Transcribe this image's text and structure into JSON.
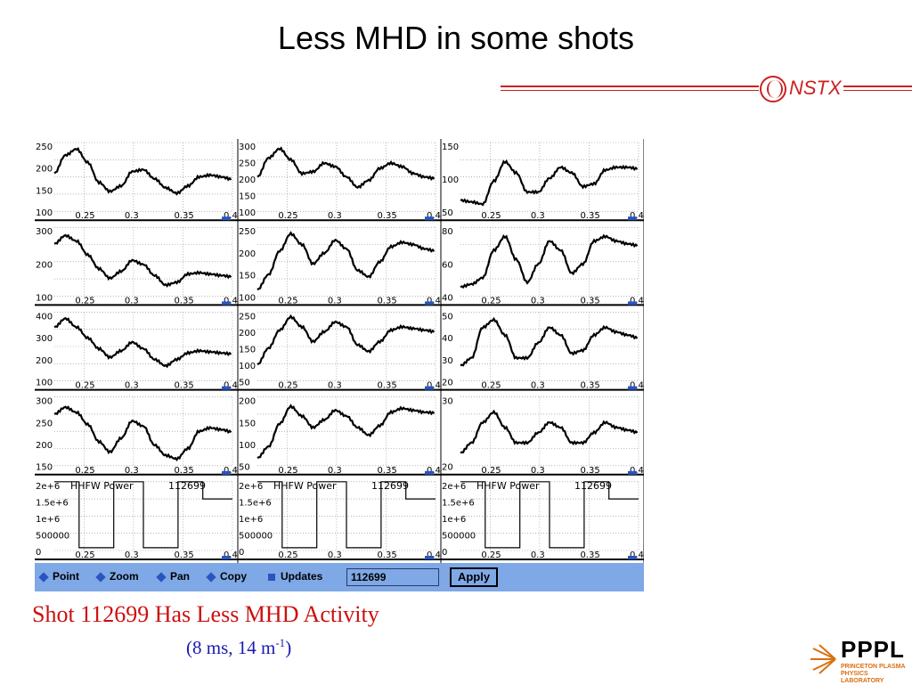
{
  "title": "Less MHD in some shots",
  "logo_nstx": "NSTX",
  "caption": "Shot 112699 Has Less MHD Activity",
  "subcaption": {
    "main": "(8 ms, 14 m",
    "sup": "-1",
    "close": ")"
  },
  "logo_pppl": {
    "main": "PPPL",
    "line1": "PRINCETON PLASMA",
    "line2": "PHYSICS LABORATORY"
  },
  "toolbar": {
    "point": "Point",
    "zoom": "Zoom",
    "pan": "Pan",
    "copy": "Copy",
    "updates": "Updates",
    "shot_value": "112699",
    "apply": "Apply"
  },
  "colors": {
    "title": "#000000",
    "caption": "#cc1010",
    "subcaption": "#1a1ab0",
    "toolbar": "#7fa8e6",
    "nstx": "#cc2020",
    "pppl_accent": "#d87010"
  },
  "chart_data": {
    "type": "line",
    "x_ticks": [
      "0.25",
      "0.3",
      "0.35",
      "0.4"
    ],
    "xlim": [
      0.22,
      0.4
    ],
    "grid": true,
    "panels": [
      {
        "row": 0,
        "col": 0,
        "y_ticks": [
          "250",
          "200",
          "150",
          "100"
        ],
        "ylim": [
          100,
          290
        ],
        "values": [
          205,
          255,
          272,
          235,
          180,
          155,
          170,
          210,
          215,
          190,
          165,
          150,
          170,
          195,
          200,
          195,
          188
        ]
      },
      {
        "row": 0,
        "col": 1,
        "y_ticks": [
          "300",
          "250",
          "200",
          "150",
          "100"
        ],
        "ylim": [
          100,
          300
        ],
        "values": [
          200,
          255,
          282,
          250,
          210,
          215,
          240,
          230,
          200,
          170,
          190,
          225,
          240,
          230,
          210,
          200,
          195
        ]
      },
      {
        "row": 0,
        "col": 2,
        "y_ticks": [
          "150",
          "100",
          "50"
        ],
        "ylim": [
          35,
          160
        ],
        "values": [
          55,
          52,
          48,
          90,
          125,
          105,
          70,
          70,
          95,
          115,
          105,
          80,
          85,
          110,
          115,
          115,
          112
        ]
      },
      {
        "row": 1,
        "col": 0,
        "y_ticks": [
          "300",
          "200",
          "100"
        ],
        "ylim": [
          100,
          350
        ],
        "values": [
          290,
          320,
          300,
          250,
          200,
          165,
          190,
          230,
          215,
          175,
          140,
          150,
          180,
          185,
          180,
          175,
          170
        ]
      },
      {
        "row": 1,
        "col": 1,
        "y_ticks": [
          "250",
          "200",
          "150",
          "100"
        ],
        "ylim": [
          100,
          260
        ],
        "values": [
          115,
          150,
          205,
          245,
          220,
          175,
          200,
          230,
          210,
          160,
          145,
          180,
          215,
          225,
          220,
          210,
          205
        ]
      },
      {
        "row": 1,
        "col": 2,
        "y_ticks": [
          "80",
          "60",
          "40"
        ],
        "ylim": [
          15,
          90
        ],
        "values": [
          25,
          28,
          35,
          65,
          80,
          55,
          30,
          50,
          75,
          65,
          40,
          50,
          75,
          80,
          75,
          72,
          70
        ]
      },
      {
        "row": 2,
        "col": 0,
        "y_ticks": [
          "400",
          "300",
          "200",
          "100"
        ],
        "ylim": [
          100,
          420
        ],
        "values": [
          350,
          390,
          350,
          300,
          250,
          210,
          240,
          280,
          250,
          200,
          170,
          200,
          230,
          240,
          235,
          230,
          225
        ]
      },
      {
        "row": 2,
        "col": 1,
        "y_ticks": [
          "250",
          "200",
          "150",
          "100",
          "50"
        ],
        "ylim": [
          50,
          260
        ],
        "values": [
          100,
          150,
          205,
          245,
          215,
          170,
          200,
          230,
          215,
          160,
          140,
          170,
          205,
          215,
          210,
          205,
          200
        ]
      },
      {
        "row": 2,
        "col": 2,
        "y_ticks": [
          "50",
          "40",
          "30",
          "20"
        ],
        "ylim": [
          10,
          55
        ],
        "values": [
          20,
          25,
          45,
          50,
          40,
          25,
          25,
          35,
          45,
          40,
          28,
          30,
          40,
          45,
          42,
          40,
          38
        ]
      },
      {
        "row": 3,
        "col": 0,
        "y_ticks": [
          "300",
          "250",
          "200",
          "150"
        ],
        "ylim": [
          130,
          330
        ],
        "values": [
          280,
          300,
          285,
          250,
          200,
          170,
          210,
          260,
          245,
          190,
          160,
          150,
          180,
          230,
          240,
          235,
          228
        ]
      },
      {
        "row": 3,
        "col": 1,
        "y_ticks": [
          "200",
          "150",
          "100",
          "50"
        ],
        "ylim": [
          40,
          220
        ],
        "values": [
          60,
          90,
          150,
          195,
          170,
          140,
          160,
          185,
          170,
          140,
          120,
          145,
          180,
          190,
          185,
          180,
          178
        ]
      },
      {
        "row": 3,
        "col": 2,
        "y_ticks": [
          "30",
          "20"
        ],
        "ylim": [
          5,
          32
        ],
        "values": [
          10,
          14,
          22,
          26,
          20,
          14,
          14,
          18,
          22,
          20,
          14,
          14,
          18,
          22,
          20,
          19,
          18
        ]
      }
    ],
    "power_panels": {
      "label": "HHFW Power",
      "shot": "112699",
      "y_ticks": [
        "2e+6",
        "1.5e+6",
        "1e+6",
        "500000",
        "0"
      ],
      "ylim": [
        0,
        2000000
      ],
      "segments": [
        [
          0.22,
          2000000
        ],
        [
          0.245,
          2000000
        ],
        [
          0.245,
          80000
        ],
        [
          0.28,
          80000
        ],
        [
          0.28,
          2000000
        ],
        [
          0.31,
          2000000
        ],
        [
          0.31,
          80000
        ],
        [
          0.345,
          80000
        ],
        [
          0.345,
          2000000
        ],
        [
          0.37,
          2000000
        ],
        [
          0.37,
          1500000
        ],
        [
          0.4,
          1500000
        ]
      ]
    }
  }
}
